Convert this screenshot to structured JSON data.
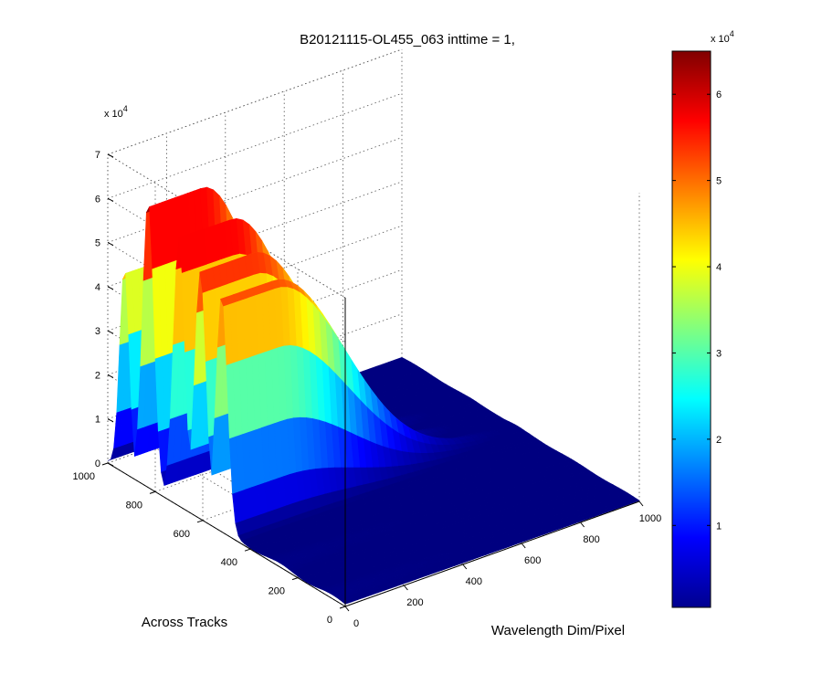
{
  "chart_data": {
    "type": "surface",
    "title": "B20121115-OL455_063 inttime = 1,",
    "xlabel": "Wavelength Dim/Pixel",
    "ylabel": "Across Tracks",
    "x_ticks": [
      "0",
      "200",
      "400",
      "600",
      "800",
      "1000"
    ],
    "y_ticks": [
      "0",
      "200",
      "400",
      "600",
      "800",
      "1000"
    ],
    "z_ticks": [
      "0",
      "1",
      "2",
      "3",
      "4",
      "5",
      "6",
      "7"
    ],
    "z_multiplier": "x 10",
    "z_multiplier_exp": "4",
    "xlim": [
      0,
      1000
    ],
    "ylim": [
      0,
      1000
    ],
    "zlim": [
      0,
      70000
    ],
    "grid": true,
    "colormap": "jet",
    "colorbar": {
      "ticks": [
        "1",
        "2",
        "3",
        "4",
        "5",
        "6"
      ],
      "multiplier": "x 10",
      "multiplier_exp": "4",
      "range": [
        500,
        65000
      ]
    },
    "ridges": [
      {
        "wavelength_start": 0,
        "wavelength_end": 780,
        "peak_across_track": 830,
        "peak": 65000
      },
      {
        "wavelength_start": 0,
        "wavelength_end": 780,
        "peak_across_track": 700,
        "peak": 60000
      },
      {
        "wavelength_start": 0,
        "wavelength_end": 780,
        "peak_across_track": 610,
        "peak": 56000
      },
      {
        "wavelength_start": 0,
        "wavelength_end": 780,
        "peak_across_track": 520,
        "peak": 53000
      }
    ],
    "shoulder": {
      "across_track": 930,
      "peak": 46000
    }
  },
  "colors": {
    "jet_low": "#00008f",
    "jet_high": "#800000",
    "grid": "#555555",
    "axis": "#000000"
  }
}
